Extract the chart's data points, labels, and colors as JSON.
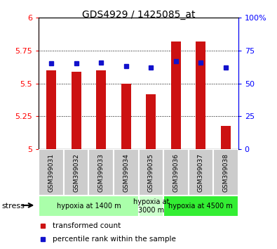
{
  "title": "GDS4929 / 1425085_at",
  "samples": [
    "GSM399031",
    "GSM399032",
    "GSM399033",
    "GSM399034",
    "GSM399035",
    "GSM399036",
    "GSM399037",
    "GSM399038"
  ],
  "transformed_count": [
    5.6,
    5.59,
    5.6,
    5.5,
    5.42,
    5.82,
    5.82,
    5.18
  ],
  "percentile_rank": [
    65,
    65,
    66,
    63,
    62,
    67,
    66,
    62
  ],
  "ylim_left": [
    5.0,
    6.0
  ],
  "ylim_right": [
    0,
    100
  ],
  "yticks_left": [
    5.0,
    5.25,
    5.5,
    5.75,
    6.0
  ],
  "yticks_right": [
    0,
    25,
    50,
    75,
    100
  ],
  "yticklabels_left": [
    "5",
    "5.25",
    "5.5",
    "5.75",
    "6"
  ],
  "yticklabels_right": [
    "0",
    "25",
    "50",
    "75",
    "100%"
  ],
  "bar_color": "#cc1111",
  "dot_color": "#1111cc",
  "grid_lines": [
    5.25,
    5.5,
    5.75
  ],
  "group_defs": [
    {
      "start": 0,
      "end": 3,
      "label": "hypoxia at 1400 m",
      "color": "#aaffaa"
    },
    {
      "start": 4,
      "end": 4,
      "label": "hypoxia at\n3000 m",
      "color": "#ccffcc"
    },
    {
      "start": 5,
      "end": 7,
      "label": "hypoxia at 4500 m",
      "color": "#33ee33"
    }
  ],
  "stress_label": "stress",
  "legend": [
    {
      "color": "#cc1111",
      "label": "transformed count"
    },
    {
      "color": "#1111cc",
      "label": "percentile rank within the sample"
    }
  ],
  "bar_width": 0.4,
  "sample_box_color": "#cccccc",
  "plot_bg": "#ffffff"
}
